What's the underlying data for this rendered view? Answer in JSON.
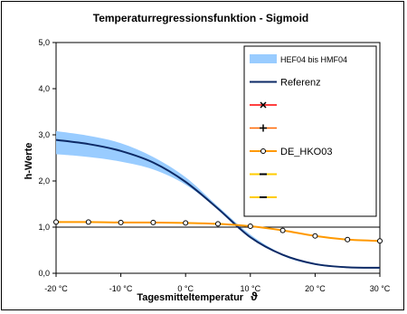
{
  "colors": {
    "band": "#99ccff",
    "reference": "#0d2a66",
    "de_hko03": "#ff9900",
    "series_red": "#ff0000",
    "series_orange": "#ff6600",
    "series_yellow": "#ffcc00",
    "baseline": "#000000"
  },
  "chart_data": {
    "type": "line",
    "title": "Temperaturregressionsfunktion - Sigmoid",
    "xlabel": "Tagesmitteltemperatur",
    "xlabel_symbol": "ϑ",
    "ylabel": "h-Werte",
    "xlim": [
      -20,
      30
    ],
    "ylim": [
      0,
      5
    ],
    "grid": false,
    "legend_position": "top-right",
    "x_ticks": [
      -20,
      -10,
      0,
      10,
      20,
      30
    ],
    "x_tick_labels": [
      "-20 °C",
      "-10 °C",
      "0 °C",
      "10 °C",
      "20 °C",
      "30 °C"
    ],
    "y_ticks": [
      0,
      1,
      2,
      3,
      4,
      5
    ],
    "y_tick_labels": [
      "0,0",
      "1,0",
      "2,0",
      "3,0",
      "4,0",
      "5,0"
    ],
    "reference_line_y": 1.0,
    "x": [
      -20,
      -15,
      -10,
      -5,
      0,
      5,
      10,
      15,
      20,
      25,
      30
    ],
    "band": {
      "name": "HEF04 bis HMF04",
      "lower": [
        2.58,
        2.52,
        2.42,
        2.25,
        1.92,
        1.4,
        0.8,
        0.38,
        0.18,
        0.12,
        0.1
      ],
      "upper": [
        3.08,
        2.98,
        2.82,
        2.52,
        2.08,
        1.45,
        0.84,
        0.42,
        0.22,
        0.14,
        0.12
      ]
    },
    "series": [
      {
        "name": "Referenz",
        "values": [
          2.89,
          2.8,
          2.65,
          2.4,
          1.98,
          1.4,
          0.78,
          0.4,
          0.2,
          0.13,
          0.12
        ]
      },
      {
        "name": "DE_HKO03",
        "values": [
          1.11,
          1.11,
          1.1,
          1.1,
          1.09,
          1.07,
          1.02,
          0.93,
          0.81,
          0.73,
          0.7
        ]
      }
    ],
    "legend": [
      {
        "label": "HEF04 bis HMF04",
        "style": "band"
      },
      {
        "label": "Referenz",
        "style": "reference"
      },
      {
        "label": "",
        "style": "x-red"
      },
      {
        "label": "",
        "style": "plus-orange"
      },
      {
        "label": "DE_HKO03",
        "style": "circle-orange"
      },
      {
        "label": "",
        "style": "dash-yellow"
      },
      {
        "label": "",
        "style": "dash-yellow-2"
      }
    ]
  }
}
